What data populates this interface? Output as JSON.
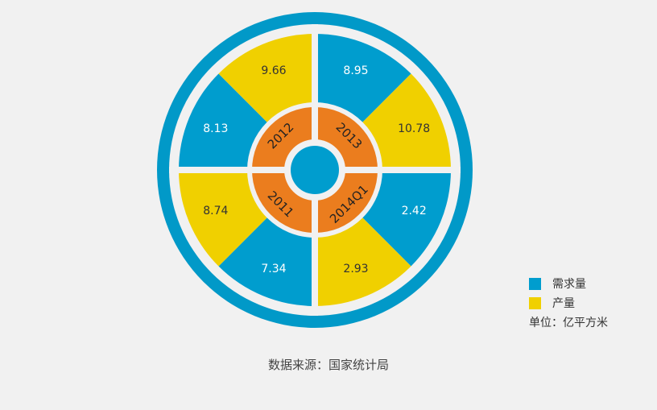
{
  "chart_data": {
    "type": "pie",
    "colors": {
      "demand": "#009dce",
      "production": "#f0d000",
      "year_ring": "#eb7d1e",
      "outer_ring": "#0199c8",
      "center": "#009dce"
    },
    "sectors": [
      {
        "year": "2013",
        "demand": 8.95,
        "production": 10.78
      },
      {
        "year": "2014Q1",
        "demand": 2.42,
        "production": 2.93
      },
      {
        "year": "2011",
        "demand": 7.34,
        "production": 8.74
      },
      {
        "year": "2012",
        "demand": 8.13,
        "production": 9.66
      }
    ],
    "legend": [
      {
        "name": "需求量",
        "color": "#009dce"
      },
      {
        "name": "产量",
        "color": "#f0d000"
      }
    ],
    "unit": "单位：亿平方米"
  },
  "source": "数据来源：国家统计局"
}
